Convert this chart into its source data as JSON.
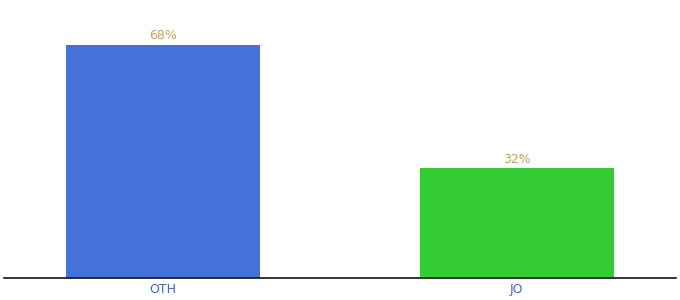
{
  "categories": [
    "OTH",
    "JO"
  ],
  "values": [
    68,
    32
  ],
  "bar_colors": [
    "#4472db",
    "#33cc33"
  ],
  "label_color": "#c8a060",
  "label_fontsize": 9,
  "tick_fontsize": 9,
  "tick_color": "#4466bb",
  "background_color": "#ffffff",
  "ylim": [
    0,
    80
  ],
  "bar_width": 0.55,
  "label_format": "{}%"
}
